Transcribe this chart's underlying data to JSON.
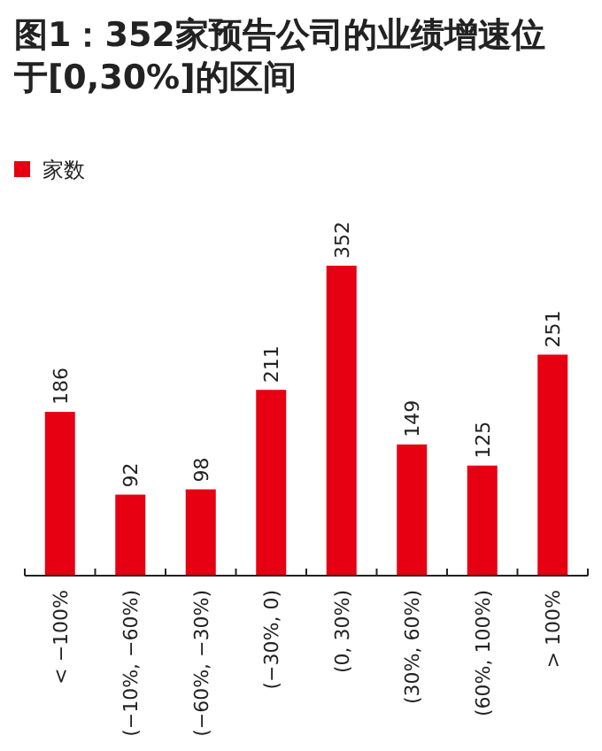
{
  "chart_data": {
    "type": "bar",
    "title": "图1：352家预告公司的业绩增速位于[0,30%]的区间",
    "categories": [
      "< −100%",
      "(−10%, −60%)",
      "(−60%, −30%)",
      "(−30%, 0)",
      "(0, 30%)",
      "(30%, 60%)",
      "(60%, 100%)",
      "> 100%"
    ],
    "series": [
      {
        "name": "家数",
        "color": "#e60012",
        "values": [
          186,
          92,
          98,
          211,
          352,
          149,
          125,
          251
        ]
      }
    ],
    "data_labels": true,
    "legend": "top left"
  }
}
